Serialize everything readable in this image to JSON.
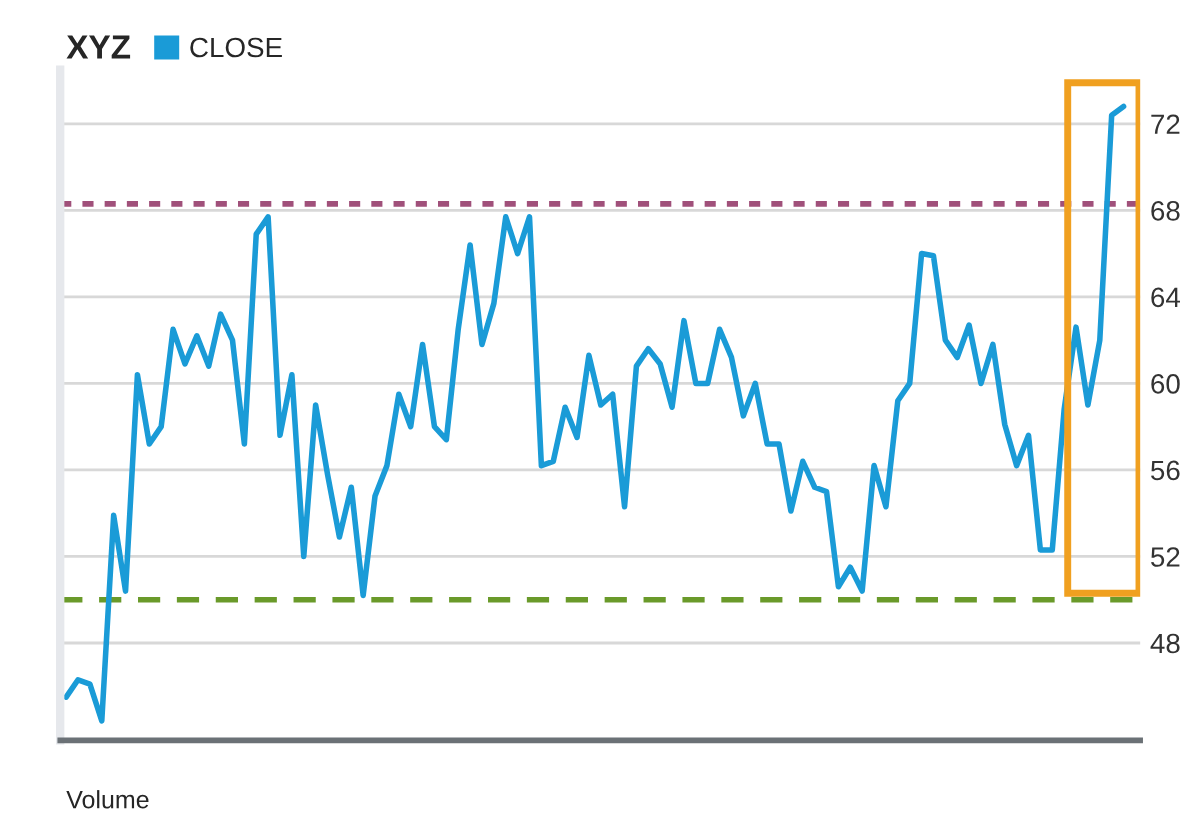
{
  "chart_data": {
    "type": "line",
    "title": "XYZ",
    "categories": [
      null,
      null,
      null,
      null,
      null,
      null,
      null,
      null,
      null,
      null,
      null,
      null,
      null,
      null,
      null,
      null,
      null,
      null,
      null,
      null,
      null,
      null,
      null,
      null,
      null,
      null,
      null,
      null,
      null,
      null,
      null,
      null,
      null,
      null,
      null,
      null,
      null,
      null,
      null,
      null,
      null,
      null,
      null,
      null,
      null,
      null,
      null,
      null,
      null,
      null,
      null,
      null,
      null,
      null,
      null,
      null,
      null,
      null,
      null,
      null,
      null,
      null,
      null,
      null,
      null,
      null,
      null,
      null,
      null,
      null,
      null,
      null,
      null,
      null,
      null,
      null,
      null,
      null,
      null,
      null,
      null,
      null,
      null,
      null,
      null,
      null,
      null,
      null,
      null,
      null
    ],
    "series": [
      {
        "name": "CLOSE",
        "color": "#1a9bd7",
        "values": [
          45.5,
          46.3,
          46.1,
          44.4,
          53.9,
          50.4,
          60.4,
          57.2,
          58.0,
          62.5,
          60.9,
          62.2,
          60.8,
          63.2,
          62.0,
          57.2,
          66.9,
          67.7,
          57.6,
          60.4,
          52.0,
          59.0,
          55.8,
          52.9,
          55.2,
          50.2,
          54.8,
          56.2,
          59.5,
          58.0,
          61.8,
          58.0,
          57.4,
          62.5,
          66.4,
          61.8,
          63.7,
          67.7,
          66.0,
          67.7,
          56.2,
          56.4,
          58.9,
          57.5,
          61.3,
          59.0,
          59.5,
          54.3,
          60.8,
          61.6,
          60.9,
          58.9,
          62.9,
          60.0,
          60.0,
          62.5,
          61.2,
          58.5,
          60.0,
          57.2,
          57.2,
          54.1,
          56.4,
          55.2,
          55.0,
          50.6,
          51.5,
          50.4,
          56.2,
          54.3,
          59.2,
          60.0,
          66.0,
          65.9,
          62.0,
          61.2,
          62.7,
          60.0,
          61.8,
          58.1,
          56.2,
          57.6,
          52.3,
          52.3,
          58.8,
          62.6,
          59.0,
          62.0,
          72.4,
          72.8
        ]
      }
    ],
    "ylim": [
      43.5,
      74.5
    ],
    "yticks": [
      48,
      52,
      56,
      60,
      64,
      68,
      72
    ],
    "grid": "y",
    "legend": "top left",
    "tick_labels": "y",
    "line_style": "solid",
    "marker": "none",
    "ref_lines": [
      {
        "axis": "y",
        "value": 68.3,
        "color": "#a0507a",
        "line_style": "dotted"
      },
      {
        "axis": "y",
        "value": 50.0,
        "color": "#6a9a2a",
        "line_style": "dashed"
      }
    ],
    "annotations": [
      "Volume"
    ]
  }
}
